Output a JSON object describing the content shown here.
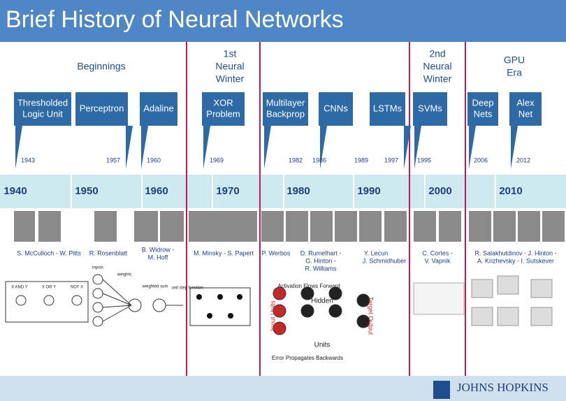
{
  "header": {
    "title": "Brief History of Neural Networks"
  },
  "eras": [
    [
      "Beginnings"
    ],
    [
      "1st",
      "Neural",
      "Winter"
    ],
    [
      "2nd",
      "Neural",
      "Winter"
    ],
    [
      "GPU",
      "Era"
    ]
  ],
  "milestones": [
    [
      "Thresholded",
      "Logic Unit"
    ],
    [
      "Perceptron"
    ],
    [
      "Adaline"
    ],
    [
      "XOR",
      "Problem"
    ],
    [
      "Multilayer",
      "Backprop"
    ],
    [
      "CNNs"
    ],
    [
      "LSTMs"
    ],
    [
      "SVMs"
    ],
    [
      "Deep",
      "Nets"
    ],
    [
      "Alex",
      "Net"
    ]
  ],
  "years": [
    "1943",
    "1957",
    "1960",
    "1969",
    "1982",
    "1986",
    "1989",
    "1997",
    "1995",
    "2006",
    "2012"
  ],
  "decades": [
    "1940",
    "1950",
    "1960",
    "1970",
    "1980",
    "1990",
    "2000",
    "2010"
  ],
  "people": [
    [
      "S. McCulloch - W. Pitts"
    ],
    [
      "R. Rosenblatt"
    ],
    [
      "B. Widrow -",
      "M. Hoff"
    ],
    [
      "M. Minsky - S. Papert"
    ],
    [
      "P. Werbos"
    ],
    [
      "D. Rumelhart -",
      "G. Hinton -",
      "R. Williams"
    ],
    [
      "Y. Lecun",
      "J. Schmidhuber"
    ],
    [
      "C. Cortes -",
      "V. Vapnik"
    ],
    [
      "R. Salakhutdinov - J. Hinton -",
      "A. Krizhevsky - I. Sutskever"
    ]
  ],
  "figures": [
    "X AND Y",
    "X OR Y",
    "NOT X",
    "inputs",
    "weights",
    "weighted sum",
    "unit step function",
    "Activation Flows Forward",
    "Hidden",
    "Units",
    "Input Units",
    "Target Output",
    "Error Propagates Backwards"
  ],
  "footer": {
    "logo": "JOHNS HOPKINS"
  }
}
